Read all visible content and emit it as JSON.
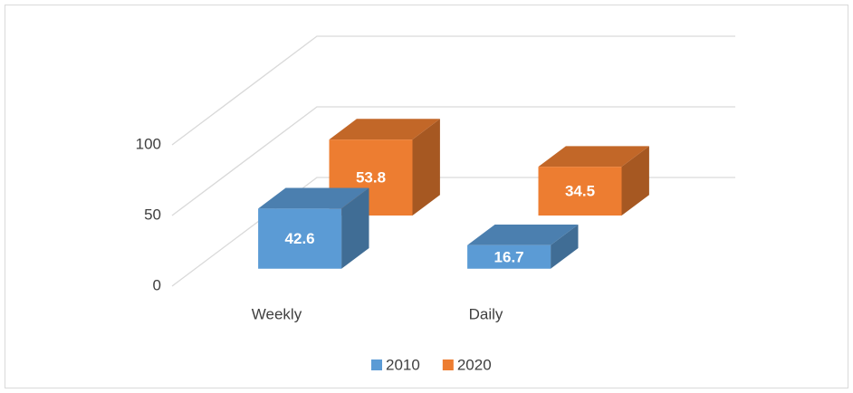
{
  "chart_data": {
    "type": "bar3d",
    "categories": [
      "Weekly",
      "Daily"
    ],
    "series": [
      {
        "name": "2010",
        "color": "#5b9bd5",
        "values": [
          42.6,
          16.7
        ]
      },
      {
        "name": "2020",
        "color": "#ed7d31",
        "values": [
          53.8,
          34.5
        ]
      }
    ],
    "ylim": [
      0,
      100
    ],
    "yticks": [
      0,
      50,
      100
    ],
    "grid": true,
    "legend": "bottom"
  }
}
